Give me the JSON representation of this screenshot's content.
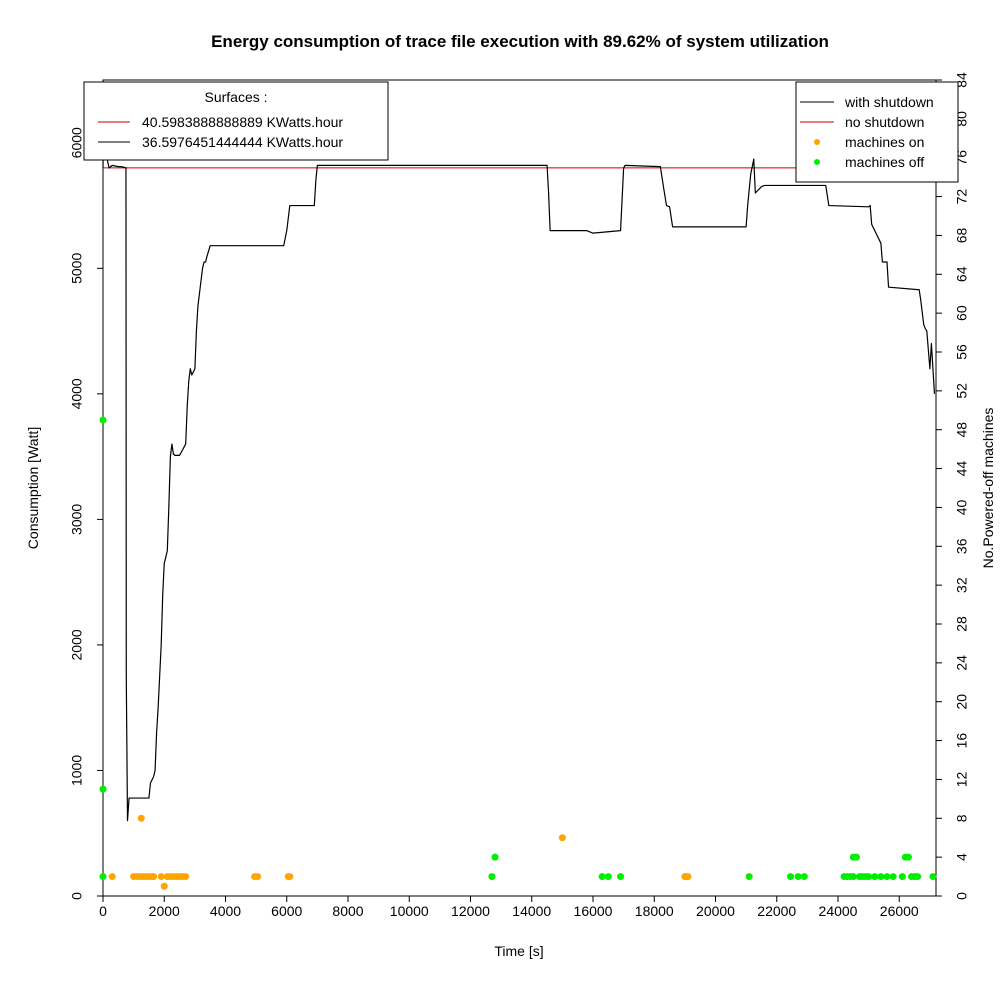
{
  "chart_data": {
    "type": "line",
    "title": "Energy consumption of trace file execution with 89.62% of system utilization",
    "xlabel": "Time [s]",
    "ylabel": "Consumption [Watt]",
    "y2label": "No.Powered-off machines",
    "xlim": [
      0,
      27200
    ],
    "ylim": [
      0,
      6500
    ],
    "y2lim": [
      0,
      84
    ],
    "x_ticks": [
      0,
      2000,
      4000,
      6000,
      8000,
      10000,
      12000,
      14000,
      16000,
      18000,
      20000,
      22000,
      24000,
      26000
    ],
    "y_ticks": [
      0,
      1000,
      2000,
      3000,
      4000,
      5000,
      6000
    ],
    "y2_ticks": [
      0,
      4,
      8,
      12,
      16,
      20,
      24,
      28,
      32,
      36,
      40,
      44,
      48,
      52,
      56,
      60,
      64,
      68,
      72,
      76,
      80,
      84
    ],
    "colors": {
      "with_shutdown": "#000000",
      "no_shutdown": "#cc0000",
      "machines_on": "#ffa500",
      "machines_off": "#00ee00"
    },
    "surfaces_legend": {
      "title": "Surfaces :",
      "entries": [
        {
          "label": "40.5983888888889  KWatts.hour",
          "color": "#cc0000"
        },
        {
          "label": "36.5976451444444  KWatts.hour",
          "color": "#000000"
        }
      ]
    },
    "series_legend": [
      {
        "label": "with shutdown",
        "kind": "line",
        "color": "#000000"
      },
      {
        "label": "no shutdown",
        "kind": "line",
        "color": "#cc0000"
      },
      {
        "label": "machines on",
        "kind": "point",
        "color": "#ffa500"
      },
      {
        "label": "machines off",
        "kind": "point",
        "color": "#00ee00"
      }
    ],
    "series": [
      {
        "name": "no shutdown",
        "x": [
          0,
          27200
        ],
        "y": [
          5800,
          5800
        ]
      },
      {
        "name": "with shutdown",
        "x": [
          0,
          20,
          60,
          100,
          150,
          200,
          300,
          500,
          600,
          750,
          760,
          800,
          850,
          900,
          1100,
          1500,
          1550,
          1650,
          1700,
          1750,
          1800,
          1900,
          1950,
          2000,
          2050,
          2100,
          2150,
          2200,
          2250,
          2300,
          2350,
          2400,
          2450,
          2500,
          2700,
          2750,
          2800,
          2850,
          2900,
          3000,
          3050,
          3100,
          3150,
          3200,
          3250,
          3300,
          3350,
          3400,
          3500,
          3550,
          3600,
          3700,
          5900,
          6000,
          6100,
          6900,
          6950,
          7000,
          14500,
          14550,
          14600,
          15800,
          16000,
          16900,
          17000,
          17050,
          18200,
          18300,
          18400,
          18500,
          18600,
          18850,
          18900,
          21000,
          21050,
          21150,
          21250,
          21300,
          21500,
          21600,
          23600,
          23700,
          25000,
          25050,
          25100,
          25400,
          25450,
          25600,
          25650,
          26600,
          26650,
          26700,
          26800,
          26850,
          26900,
          26950,
          27000,
          27050,
          27150
        ],
        "y": [
          5800,
          6300,
          6100,
          6200,
          5850,
          5800,
          5820,
          5810,
          5810,
          5800,
          1750,
          600,
          780,
          780,
          780,
          780,
          900,
          950,
          1000,
          1300,
          1500,
          2000,
          2400,
          2650,
          2700,
          2750,
          3100,
          3500,
          3600,
          3520,
          3510,
          3510,
          3510,
          3510,
          3600,
          3900,
          4100,
          4200,
          4150,
          4200,
          4500,
          4700,
          4800,
          4900,
          5000,
          5050,
          5050,
          5100,
          5180,
          5180,
          5180,
          5180,
          5180,
          5300,
          5500,
          5500,
          5700,
          5820,
          5820,
          5600,
          5300,
          5300,
          5280,
          5300,
          5800,
          5820,
          5810,
          5650,
          5500,
          5490,
          5330,
          5330,
          5330,
          5330,
          5500,
          5750,
          5870,
          5600,
          5650,
          5660,
          5660,
          5500,
          5490,
          5500,
          5350,
          5200,
          5050,
          5050,
          4850,
          4830,
          4830,
          4750,
          4550,
          4520,
          4500,
          4350,
          4200,
          4400,
          4000
        ]
      },
      {
        "name": "machines on",
        "x": [
          300,
          1000,
          1100,
          1200,
          1250,
          1300,
          1400,
          1500,
          1600,
          1650,
          1900,
          2000,
          2100,
          2200,
          2300,
          2400,
          2500,
          2600,
          2700,
          4950,
          5050,
          6050,
          6100,
          15000,
          19000,
          19050,
          19100
        ],
        "y": [
          2,
          2,
          2,
          2,
          8,
          2,
          2,
          2,
          2,
          2,
          2,
          1,
          2,
          2,
          2,
          2,
          2,
          2,
          2,
          2,
          2,
          2,
          2,
          6,
          2,
          2,
          2
        ]
      },
      {
        "name": "machines off",
        "x": [
          0,
          0,
          0,
          12700,
          12800,
          16300,
          16500,
          16900,
          21100,
          22450,
          22700,
          22900,
          24200,
          24300,
          24400,
          24500,
          24500,
          24600,
          24700,
          24800,
          24900,
          25000,
          25200,
          25400,
          25600,
          25800,
          26100,
          26200,
          26300,
          26400,
          26500,
          26600,
          27100
        ],
        "y": [
          49,
          11,
          2,
          2,
          4,
          2,
          2,
          2,
          2,
          2,
          2,
          2,
          2,
          2,
          2,
          4,
          2,
          4,
          2,
          2,
          2,
          2,
          2,
          2,
          2,
          2,
          2,
          4,
          4,
          2,
          2,
          2,
          2
        ]
      }
    ]
  }
}
